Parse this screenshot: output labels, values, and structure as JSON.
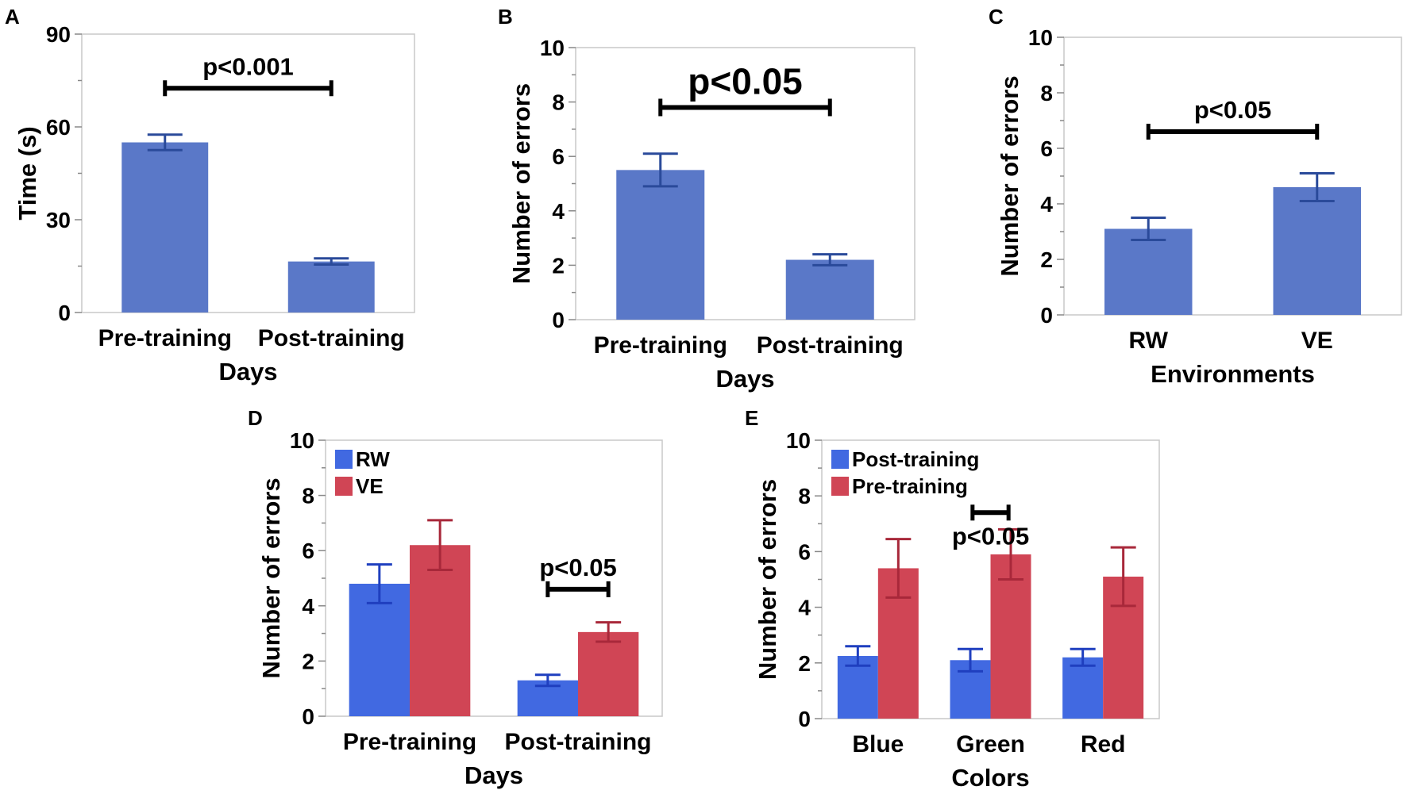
{
  "colors": {
    "single": "#5a78c8",
    "rw": "#4169e1",
    "ve": "#d04555",
    "rw_err": "#1f3fbf",
    "ve_err": "#a8283a",
    "single_err": "#2a4a9a"
  },
  "chart_data": [
    {
      "panel": "A",
      "type": "bar",
      "categories": [
        "Pre-training",
        "Post-training"
      ],
      "series": [
        {
          "name": "Time",
          "values": [
            55,
            16.5
          ],
          "errors": [
            2.5,
            1.0
          ],
          "color_key": "single"
        }
      ],
      "xlabel": "Days",
      "ylabel": "Time (s)",
      "ylim": [
        0,
        90
      ],
      "yticks": [
        "0",
        "30",
        "60",
        "90"
      ],
      "grid": false,
      "annotations": [
        {
          "text": "p<0.001",
          "from": "Pre-training",
          "to": "Post-training",
          "y": 72.5,
          "size": "medium"
        }
      ]
    },
    {
      "panel": "B",
      "type": "bar",
      "categories": [
        "Pre-training",
        "Post-training"
      ],
      "series": [
        {
          "name": "Number of errors",
          "values": [
            5.5,
            2.2
          ],
          "errors": [
            0.6,
            0.2
          ],
          "color_key": "single"
        }
      ],
      "xlabel": "Days",
      "ylabel": "Number of errors",
      "ylim": [
        0,
        10
      ],
      "yticks": [
        "0",
        "2",
        "4",
        "6",
        "8",
        "10"
      ],
      "grid": false,
      "annotations": [
        {
          "text": "p<0.05",
          "from": "Pre-training",
          "to": "Post-training",
          "y": 7.8,
          "size": "large"
        }
      ]
    },
    {
      "panel": "C",
      "type": "bar",
      "categories": [
        "RW",
        "VE"
      ],
      "series": [
        {
          "name": "Number of errors",
          "values": [
            3.1,
            4.6
          ],
          "errors": [
            0.4,
            0.5
          ],
          "color_key": "single"
        }
      ],
      "xlabel": "Environments",
      "ylabel": "Number of errors",
      "ylim": [
        0,
        10
      ],
      "yticks": [
        "0",
        "2",
        "4",
        "6",
        "8",
        "10"
      ],
      "grid": false,
      "annotations": [
        {
          "text": "p<0.05",
          "from": "RW",
          "to": "VE",
          "y": 6.6,
          "size": "medium"
        }
      ]
    },
    {
      "panel": "D",
      "type": "bar",
      "categories": [
        "Pre-training",
        "Post-training"
      ],
      "series": [
        {
          "name": "RW",
          "values": [
            4.8,
            1.3
          ],
          "errors": [
            0.7,
            0.2
          ],
          "color_key": "rw"
        },
        {
          "name": "VE",
          "values": [
            6.2,
            3.05
          ],
          "errors": [
            0.9,
            0.35
          ],
          "color_key": "ve"
        }
      ],
      "xlabel": "Days",
      "ylabel": "Number of errors",
      "ylim": [
        0,
        10
      ],
      "yticks": [
        "0",
        "2",
        "4",
        "6",
        "8",
        "10"
      ],
      "grid": false,
      "legend": "top-left",
      "annotations": [
        {
          "text": "p<0.05",
          "category": "Post-training",
          "y": 4.6,
          "size": "medium"
        }
      ]
    },
    {
      "panel": "E",
      "type": "bar",
      "categories": [
        "Blue",
        "Green",
        "Red"
      ],
      "series": [
        {
          "name": "Post-training",
          "values": [
            2.25,
            2.1,
            2.2
          ],
          "errors": [
            0.35,
            0.4,
            0.3
          ],
          "color_key": "rw"
        },
        {
          "name": "Pre-training",
          "values": [
            5.4,
            5.9,
            5.1
          ],
          "errors": [
            1.05,
            0.9,
            1.05
          ],
          "color_key": "ve"
        }
      ],
      "xlabel": "Colors",
      "ylabel": "Number of errors",
      "ylim": [
        0,
        10
      ],
      "yticks": [
        "0",
        "2",
        "4",
        "6",
        "8",
        "10"
      ],
      "grid": false,
      "legend": "top-left",
      "annotations": [
        {
          "text": "p<0.05",
          "category": "Green",
          "y": 7.4,
          "text_below": true,
          "size": "medium"
        }
      ]
    }
  ]
}
